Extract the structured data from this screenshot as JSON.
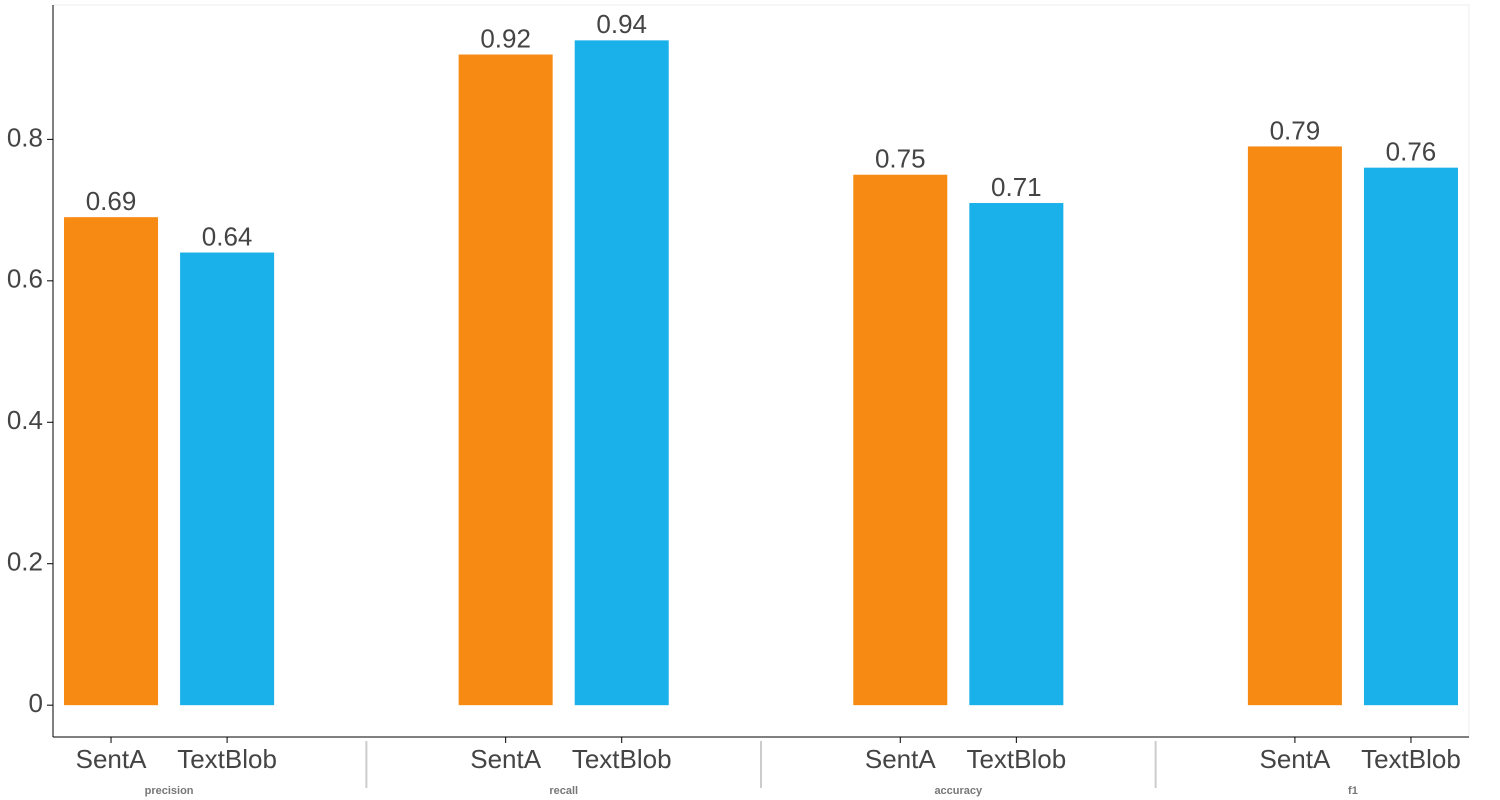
{
  "chart_data": {
    "type": "bar",
    "groups": [
      "precision",
      "recall",
      "accuracy",
      "f1"
    ],
    "series": [
      {
        "name": "SentA",
        "color": "#f68a12",
        "values": [
          0.69,
          0.92,
          0.75,
          0.79
        ]
      },
      {
        "name": "TextBlob",
        "color": "#1ab0ea",
        "values": [
          0.64,
          0.94,
          0.71,
          0.76
        ]
      }
    ],
    "ylim": [
      -0.045,
      0.99
    ],
    "yticks": [
      0,
      0.2,
      0.4,
      0.6,
      0.8
    ]
  }
}
